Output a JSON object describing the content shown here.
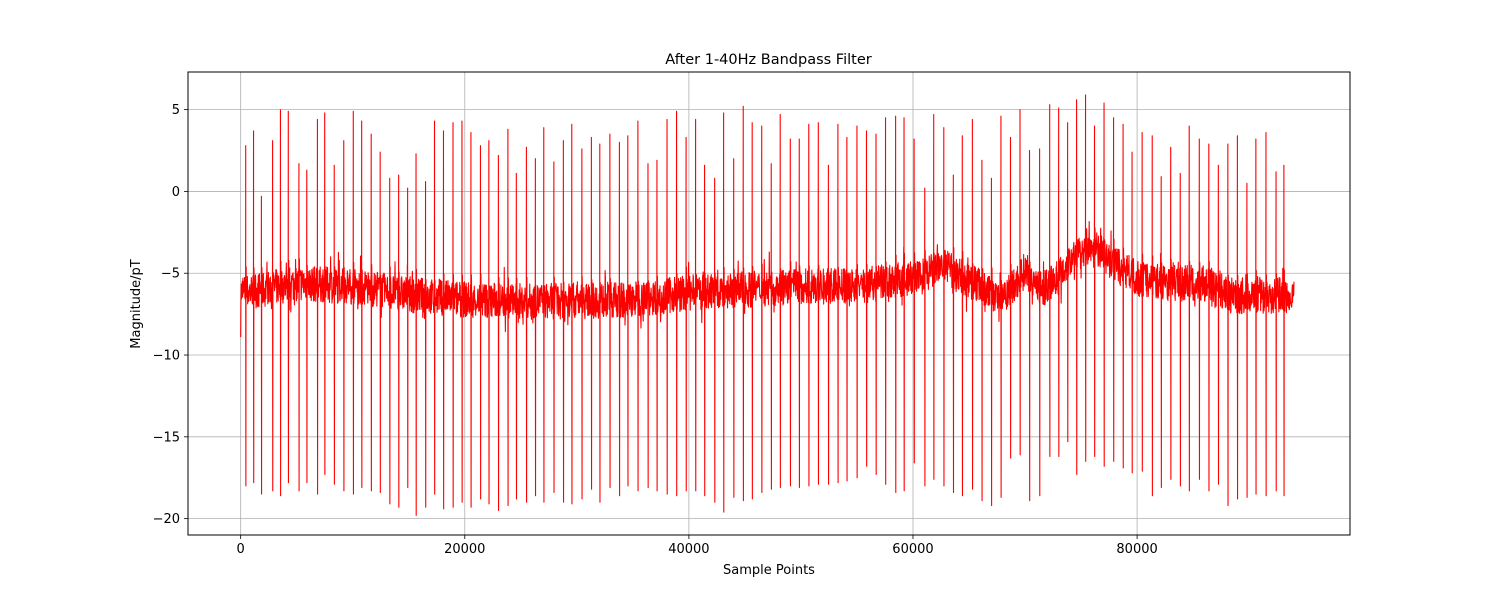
{
  "chart_data": {
    "type": "line",
    "title": "After 1-40Hz Bandpass Filter",
    "xlabel": "Sample Points",
    "ylabel": "Magnitude/pT",
    "xlim": [
      -4700,
      99000
    ],
    "ylim": [
      -21,
      7.3
    ],
    "x_ticks": [
      0,
      20000,
      40000,
      60000,
      80000
    ],
    "x_tick_labels": [
      "0",
      "20000",
      "40000",
      "60000",
      "80000"
    ],
    "y_ticks": [
      5,
      0,
      -5,
      -10,
      -15,
      -20
    ],
    "y_tick_labels": [
      "5",
      "0",
      "−5",
      "−10",
      "−15",
      "−20"
    ],
    "grid": true,
    "line_color": "#ff0000",
    "series": [
      {
        "name": "",
        "x_start": 0,
        "x_end": 94000,
        "beat_positions": [
          450,
          1150,
          1850,
          2850,
          3550,
          4250,
          5200,
          5900,
          6850,
          7500,
          8350,
          9200,
          10050,
          10800,
          11650,
          12450,
          13300,
          14100,
          14900,
          15650,
          16500,
          17300,
          18100,
          18950,
          19750,
          20550,
          21400,
          22150,
          23000,
          23850,
          24600,
          25500,
          26300,
          27050,
          27950,
          28800,
          29550,
          30450,
          31300,
          32050,
          32950,
          33800,
          34550,
          35450,
          36350,
          37150,
          38050,
          38900,
          39750,
          40600,
          41400,
          42300,
          43100,
          44000,
          44850,
          45650,
          46500,
          47350,
          48150,
          49050,
          49850,
          50700,
          51550,
          52450,
          53300,
          54100,
          55000,
          55850,
          56700,
          57550,
          58450,
          59200,
          60100,
          61050,
          61850,
          62750,
          63600,
          64400,
          65300,
          66150,
          67000,
          67850,
          68700,
          69550,
          70400,
          71300,
          72200,
          73000,
          73800,
          74600,
          75400,
          76200,
          77050,
          77900,
          78750,
          79550,
          80450,
          81350,
          82150,
          83000,
          83850,
          84650,
          85550,
          86400,
          87250,
          88100,
          88950,
          89800,
          90600,
          91500,
          92400,
          93100
        ],
        "r_peaks": [
          2.8,
          3.7,
          -0.3,
          3.1,
          5.0,
          4.9,
          1.7,
          1.3,
          4.4,
          4.8,
          1.6,
          3.1,
          4.9,
          4.3,
          3.5,
          2.4,
          0.8,
          1.0,
          0.2,
          2.3,
          0.6,
          4.3,
          3.7,
          4.2,
          4.3,
          3.6,
          2.8,
          3.1,
          2.2,
          3.8,
          1.1,
          2.7,
          2.0,
          3.9,
          1.8,
          3.1,
          4.1,
          2.6,
          3.3,
          2.9,
          3.5,
          3.0,
          3.4,
          4.3,
          1.7,
          1.9,
          4.4,
          4.9,
          3.3,
          4.4,
          1.6,
          0.8,
          4.8,
          2.0,
          5.2,
          4.2,
          4.0,
          1.7,
          4.7,
          3.2,
          3.2,
          4.1,
          4.2,
          1.6,
          4.1,
          3.3,
          4.0,
          3.7,
          3.5,
          4.5,
          4.6,
          4.5,
          3.2,
          0.2,
          4.7,
          3.9,
          1.0,
          3.4,
          4.4,
          1.9,
          0.8,
          4.6,
          3.3,
          5.0,
          2.5,
          2.6,
          5.3,
          5.1,
          4.2,
          5.6,
          5.9,
          4.0,
          5.4,
          4.5,
          4.1,
          2.4,
          3.6,
          3.4,
          0.9,
          2.7,
          1.1,
          4.0,
          3.2,
          2.9,
          1.6,
          2.9,
          3.4,
          0.5,
          3.2,
          3.6,
          1.2,
          1.6
        ],
        "s_troughs": [
          -18.0,
          -17.8,
          -18.5,
          -18.3,
          -18.6,
          -17.8,
          -18.3,
          -17.8,
          -18.5,
          -17.3,
          -17.9,
          -18.3,
          -18.5,
          -18.1,
          -18.3,
          -18.4,
          -19.1,
          -19.3,
          -18.1,
          -19.8,
          -19.3,
          -18.5,
          -19.4,
          -19.3,
          -19.0,
          -19.3,
          -18.8,
          -19.1,
          -19.5,
          -19.2,
          -18.8,
          -19.0,
          -18.6,
          -19.0,
          -18.4,
          -19.0,
          -19.1,
          -18.8,
          -18.2,
          -19.0,
          -18.1,
          -18.6,
          -18.0,
          -18.3,
          -18.1,
          -18.3,
          -18.5,
          -18.6,
          -18.3,
          -18.3,
          -18.6,
          -19.0,
          -19.6,
          -18.7,
          -18.9,
          -18.8,
          -18.4,
          -18.2,
          -18.1,
          -18.0,
          -18.1,
          -18.0,
          -17.9,
          -17.9,
          -17.8,
          -17.7,
          -17.5,
          -16.8,
          -17.3,
          -17.9,
          -18.4,
          -18.3,
          -16.6,
          -18.0,
          -17.6,
          -18.0,
          -18.4,
          -18.6,
          -18.2,
          -18.9,
          -19.2,
          -18.7,
          -16.3,
          -16.1,
          -18.9,
          -18.6,
          -16.2,
          -16.2,
          -15.3,
          -17.3,
          -16.5,
          -16.2,
          -16.8,
          -16.5,
          -16.9,
          -17.2,
          -17.1,
          -18.6,
          -18.1,
          -17.6,
          -18.0,
          -18.3,
          -17.6,
          -18.3,
          -17.9,
          -19.2,
          -18.8,
          -18.7,
          -18.5,
          -18.6,
          -18.3,
          -18.6
        ],
        "baseline_knots": {
          "x": [
            0,
            2000,
            5000,
            10000,
            15000,
            20000,
            25000,
            30000,
            35000,
            40000,
            45000,
            50000,
            55000,
            58000,
            61000,
            62500,
            64000,
            66000,
            67500,
            69000,
            70000,
            71500,
            73000,
            74000,
            75500,
            76500,
            78000,
            80000,
            83000,
            86000,
            87500,
            90000,
            94000
          ],
          "y": [
            -6.2,
            -6.0,
            -5.6,
            -5.8,
            -6.3,
            -6.6,
            -6.7,
            -6.7,
            -6.6,
            -6.2,
            -6.0,
            -5.8,
            -5.8,
            -5.5,
            -5.2,
            -4.5,
            -5.1,
            -5.7,
            -6.5,
            -5.8,
            -4.8,
            -6.0,
            -5.2,
            -4.2,
            -3.6,
            -3.5,
            -4.5,
            -5.3,
            -5.6,
            -5.6,
            -6.3,
            -6.4,
            -6.3
          ]
        }
      }
    ]
  }
}
